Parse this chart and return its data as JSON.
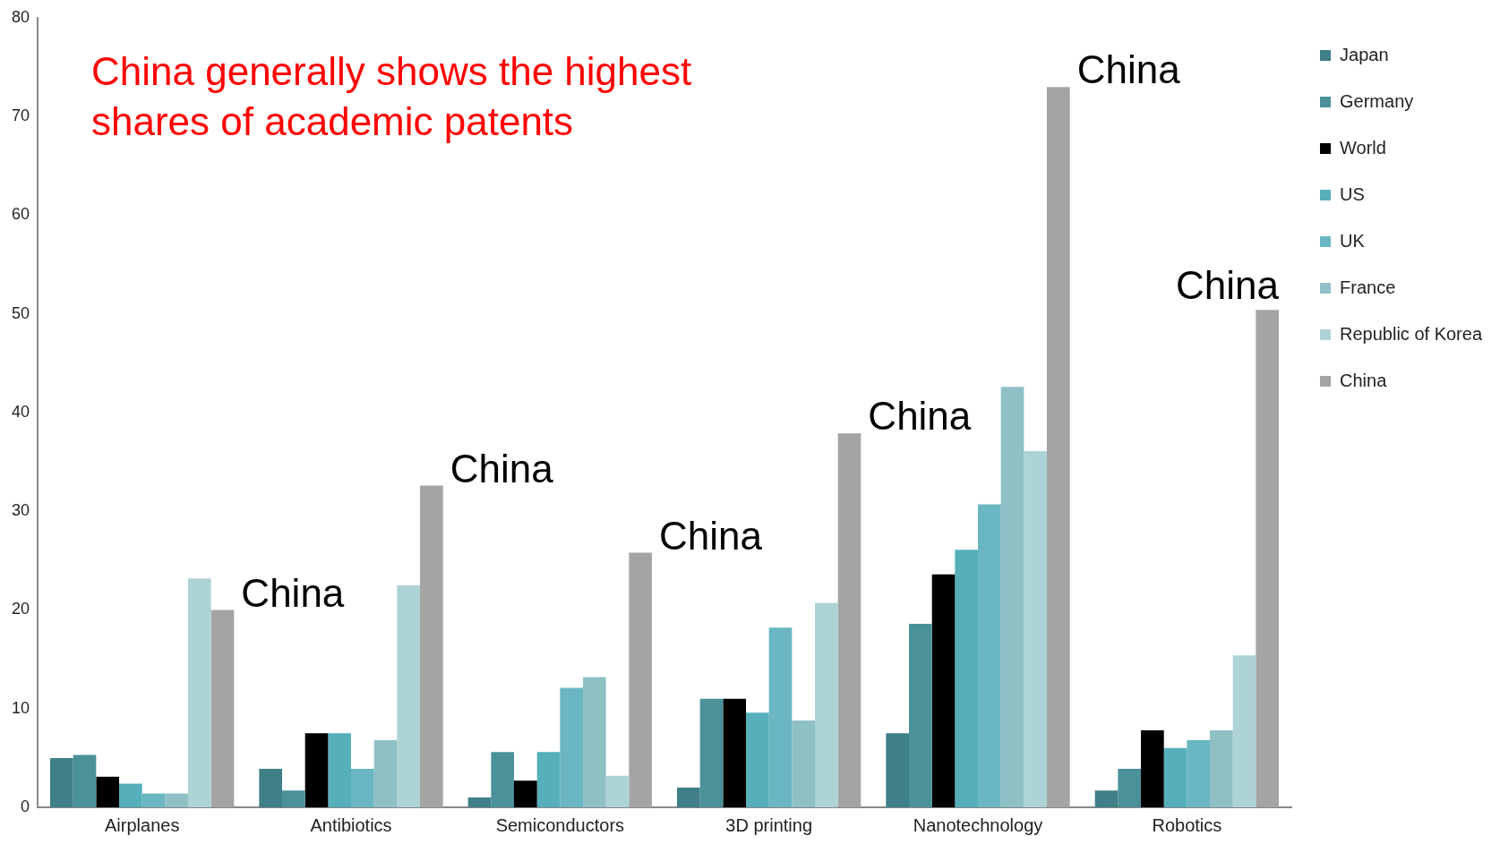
{
  "chart_data": {
    "type": "bar",
    "title": "China generally shows the highest shares of academic patents",
    "categories": [
      "Airplanes",
      "Antibiotics",
      "Semiconductors",
      "3D printing",
      "Nanotechnology",
      "Robotics"
    ],
    "series": [
      {
        "name": "Japan",
        "color": "#3f7f87",
        "values": [
          5.0,
          3.9,
          1.0,
          2.0,
          7.5,
          1.7
        ]
      },
      {
        "name": "Germany",
        "color": "#4a9199",
        "values": [
          5.3,
          1.7,
          5.6,
          11.0,
          18.6,
          3.9
        ]
      },
      {
        "name": "World",
        "color": "#000000",
        "values": [
          3.1,
          7.5,
          2.7,
          11.0,
          23.6,
          7.8
        ]
      },
      {
        "name": "US",
        "color": "#56afbb",
        "values": [
          2.4,
          7.5,
          5.6,
          9.6,
          26.1,
          6.0
        ]
      },
      {
        "name": "UK",
        "color": "#6ab6c2",
        "values": [
          1.4,
          3.9,
          12.1,
          18.2,
          30.7,
          6.8
        ]
      },
      {
        "name": "France",
        "color": "#8fc0c6",
        "values": [
          1.4,
          6.8,
          13.2,
          8.8,
          42.6,
          7.8
        ]
      },
      {
        "name": "Republic of Korea",
        "color": "#add3d6",
        "values": [
          23.2,
          22.5,
          3.2,
          20.7,
          36.1,
          15.4
        ]
      },
      {
        "name": "China",
        "color": "#a3a5a3",
        "values": [
          20.0,
          32.6,
          25.8,
          37.9,
          73.0,
          50.4
        ]
      }
    ],
    "ylim": [
      0,
      80
    ],
    "yticks": [
      0,
      10,
      20,
      30,
      40,
      50,
      60,
      70,
      80
    ],
    "grid": false,
    "legend": "right",
    "annotations": [
      "China",
      "China",
      "China",
      "China",
      "China",
      "China"
    ]
  }
}
